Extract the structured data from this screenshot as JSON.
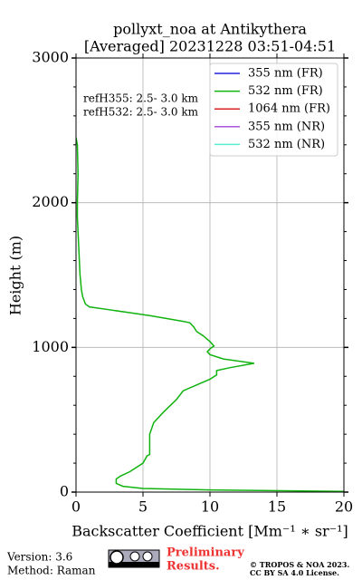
{
  "chart_data": {
    "type": "profile",
    "title": [
      "pollyxt_noa at Antikythera",
      "[Averaged] 20231228 03:51-04:51"
    ],
    "annotations": [
      "refH355:  2.5- 3.0 km",
      "refH532:  2.5- 3.0 km"
    ],
    "xlabel": "Backscatter Coefficient [Mm⁻¹ ∗ sr⁻¹]",
    "ylabel": "Height (m)",
    "xlim": [
      0,
      20
    ],
    "xticks": [
      0,
      5,
      10,
      15,
      20
    ],
    "ylim": [
      0,
      3000
    ],
    "yticks": [
      0,
      1000,
      2000,
      3000
    ],
    "yminorticks": [
      200,
      400,
      600,
      800,
      1200,
      1400,
      1600,
      1800,
      2200,
      2400,
      2600,
      2800
    ],
    "grid": true,
    "legend": "upper right",
    "series": [
      {
        "name": "355 nm (FR)",
        "color": "#2222dd",
        "x": [],
        "y": []
      },
      {
        "name": "532 nm (FR)",
        "color": "#11b311",
        "x": [
          20,
          10,
          5,
          3.5,
          3,
          3,
          3.3,
          4,
          4.5,
          5,
          5.3,
          5.5,
          5.5,
          5.5,
          5.8,
          6.5,
          7.5,
          8,
          9,
          10,
          10.5,
          10.5,
          11.5,
          13.3,
          11,
          10,
          9.8,
          10,
          10.3,
          10,
          9.5,
          9,
          8.8,
          8.5,
          8,
          5.5,
          4,
          2.5,
          1,
          0.7,
          0.5,
          0.4,
          0.3,
          0.2,
          0.1,
          0.1,
          0.15,
          0.1,
          0
        ],
        "y": [
          5,
          15,
          25,
          40,
          60,
          90,
          110,
          140,
          170,
          200,
          250,
          260,
          300,
          400,
          480,
          550,
          640,
          700,
          740,
          780,
          810,
          840,
          860,
          890,
          920,
          950,
          970,
          990,
          1010,
          1040,
          1080,
          1110,
          1140,
          1170,
          1180,
          1220,
          1240,
          1260,
          1280,
          1300,
          1350,
          1400,
          1500,
          1700,
          1900,
          2000,
          2200,
          2400,
          2450
        ]
      },
      {
        "name": "1064 nm (FR)",
        "color": "#dd2222",
        "x": [],
        "y": []
      },
      {
        "name": "355 nm (NR)",
        "color": "#aa55dd",
        "x": [],
        "y": []
      },
      {
        "name": "532 nm (NR)",
        "color": "#55eecc",
        "x": [],
        "y": []
      }
    ]
  },
  "footer": {
    "version": "Version: 3.6",
    "method": "Method: Raman",
    "preliminary": [
      "Preliminary",
      "Results."
    ],
    "copyright": [
      "© TROPOS & NOA 2023.",
      "CC BY SA 4.0 License."
    ]
  }
}
